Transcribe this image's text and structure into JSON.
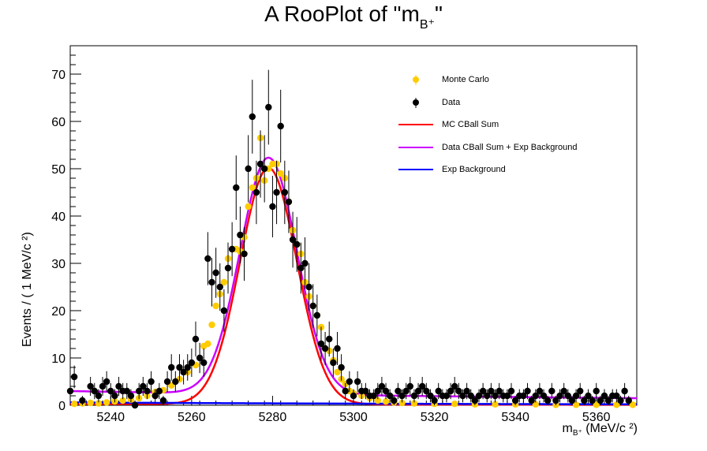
{
  "chart_data": {
    "type": "scatter",
    "title": "A RooPlot of \"m",
    "title_sub": "B⁺",
    "title_end": "\"",
    "ylabel": "Events / ( 1 MeV/c ²)",
    "xlabel": "m",
    "xlabel_sub": "B⁺",
    "xlabel_units": " (MeV/c ²)",
    "xlim": [
      5230,
      5370
    ],
    "ylim": [
      0,
      76
    ],
    "x_ticks": [
      5240,
      5260,
      5280,
      5300,
      5320,
      5340,
      5360
    ],
    "y_ticks": [
      0,
      10,
      20,
      30,
      40,
      50,
      60,
      70
    ],
    "legend": [
      {
        "label": "Monte Carlo",
        "kind": "marker",
        "color": "#ffcc00"
      },
      {
        "label": "Data",
        "kind": "marker",
        "color": "#000000"
      },
      {
        "label": "MC CBall Sum",
        "kind": "line",
        "color": "#ff0000"
      },
      {
        "label": "Data CBall Sum + Exp Background",
        "kind": "line",
        "color": "#cc00ff"
      },
      {
        "label": "Exp Background",
        "kind": "line",
        "color": "#0000ff"
      }
    ],
    "series": [
      {
        "name": "Monte Carlo",
        "kind": "points",
        "color": "#ffcc00",
        "x": [
          5231,
          5233,
          5235,
          5237,
          5239,
          5241,
          5243,
          5245,
          5247,
          5249,
          5251,
          5253,
          5255,
          5257,
          5259,
          5261,
          5263,
          5264,
          5265,
          5266,
          5267,
          5268,
          5269,
          5270,
          5271,
          5272,
          5273,
          5274,
          5275,
          5276,
          5277,
          5278,
          5279,
          5280,
          5281,
          5282,
          5283,
          5284,
          5285,
          5286,
          5287,
          5288,
          5289,
          5290,
          5291,
          5292,
          5293,
          5294,
          5295,
          5296,
          5297,
          5298,
          5299,
          5300,
          5302,
          5304,
          5306,
          5308,
          5310,
          5312,
          5315,
          5320,
          5325,
          5330,
          5335,
          5340,
          5345,
          5350,
          5355,
          5360,
          5365,
          5369
        ],
        "y": [
          0.3,
          0.4,
          0.5,
          0.4,
          0.6,
          0.8,
          1.0,
          1.2,
          1.5,
          2.0,
          2.8,
          3.2,
          4.2,
          5.5,
          7.0,
          8.5,
          12.5,
          13,
          17,
          21,
          23.5,
          26,
          31,
          33,
          33,
          32.5,
          35.5,
          42,
          46,
          48,
          56.5,
          47.5,
          50,
          51,
          51,
          49,
          48,
          43,
          37,
          34,
          32,
          26,
          23,
          21,
          19,
          16.5,
          12,
          11.5,
          9.5,
          7,
          5.5,
          4.5,
          3,
          2.5,
          2.0,
          1.5,
          1.0,
          0.8,
          0.6,
          0.5,
          0.4,
          0.3,
          0.3,
          0.2,
          0.2,
          0.2,
          0.2,
          0.1,
          0.1,
          0.1,
          0.1,
          0.1
        ]
      },
      {
        "name": "Data",
        "kind": "points_err",
        "color": "#000000",
        "x": [
          5230,
          5231,
          5233,
          5235,
          5236,
          5237,
          5238,
          5239,
          5240,
          5241,
          5242,
          5243,
          5244,
          5245,
          5246,
          5247,
          5248,
          5249,
          5250,
          5251,
          5252,
          5253,
          5254,
          5255,
          5256,
          5257,
          5258,
          5259,
          5260,
          5261,
          5262,
          5263,
          5264,
          5265,
          5266,
          5267,
          5268,
          5269,
          5270,
          5271,
          5272,
          5273,
          5274,
          5275,
          5276,
          5277,
          5278,
          5279,
          5280,
          5281,
          5282,
          5283,
          5284,
          5285,
          5286,
          5287,
          5288,
          5289,
          5290,
          5291,
          5292,
          5293,
          5294,
          5295,
          5296,
          5297,
          5298,
          5299,
          5300,
          5301,
          5302,
          5303,
          5304,
          5305,
          5306,
          5307,
          5308,
          5309,
          5310,
          5311,
          5312,
          5313,
          5314,
          5315,
          5316,
          5317,
          5318,
          5319,
          5320,
          5321,
          5322,
          5323,
          5324,
          5325,
          5326,
          5327,
          5328,
          5329,
          5330,
          5331,
          5332,
          5333,
          5334,
          5335,
          5336,
          5337,
          5338,
          5339,
          5340,
          5341,
          5342,
          5343,
          5344,
          5345,
          5346,
          5347,
          5348,
          5349,
          5350,
          5351,
          5352,
          5353,
          5354,
          5355,
          5356,
          5357,
          5358,
          5359,
          5360,
          5361,
          5362,
          5363,
          5364,
          5365,
          5366,
          5367,
          5368
        ],
        "y": [
          3,
          6,
          1,
          4,
          3,
          2,
          4,
          5,
          3,
          2,
          4,
          3,
          3,
          2,
          0,
          3,
          4,
          3,
          5,
          2,
          3,
          1,
          5,
          8,
          5,
          8,
          7,
          8,
          9,
          14,
          10,
          9,
          31,
          26,
          28,
          25,
          20,
          29,
          33,
          46,
          36,
          32,
          50,
          61,
          45,
          51,
          50,
          63,
          42,
          45,
          59,
          45,
          43,
          35,
          34,
          29,
          30,
          25,
          21,
          19,
          13,
          12,
          14,
          9,
          12,
          8,
          3,
          5,
          2,
          5,
          3,
          3,
          2,
          2,
          3,
          4,
          3,
          2,
          1,
          3,
          2,
          3,
          4,
          2,
          3,
          4,
          3,
          2,
          1,
          3,
          2,
          2,
          3,
          4,
          3,
          2,
          3,
          2,
          1,
          2,
          3,
          2,
          3,
          2,
          3,
          2,
          2,
          3,
          1,
          2,
          2,
          3,
          1,
          2,
          3,
          2,
          1,
          3,
          1,
          2,
          3,
          2,
          1,
          2,
          3,
          1,
          2,
          1,
          3,
          1,
          2,
          1,
          2,
          2,
          1,
          3,
          1
        ],
        "err": [
          1.7,
          2.4,
          1.0,
          2.0,
          1.7,
          1.4,
          2.0,
          2.2,
          1.7,
          1.4,
          2.0,
          1.7,
          1.7,
          1.4,
          1.0,
          1.7,
          2.0,
          1.7,
          2.2,
          1.4,
          1.7,
          1.0,
          2.2,
          2.8,
          2.2,
          2.8,
          2.6,
          2.8,
          3.0,
          3.7,
          3.2,
          3.0,
          5.6,
          5.1,
          5.3,
          5.0,
          4.5,
          5.4,
          5.7,
          6.8,
          6.0,
          5.7,
          7.1,
          7.8,
          6.7,
          7.1,
          7.1,
          7.9,
          6.5,
          6.7,
          7.7,
          6.7,
          6.6,
          5.9,
          5.8,
          5.4,
          5.5,
          5.0,
          4.6,
          4.4,
          3.6,
          3.5,
          3.7,
          3.0,
          3.5,
          2.8,
          1.7,
          2.2,
          1.4,
          2.2,
          1.7,
          1.7,
          1.4,
          1.4,
          1.7,
          2.0,
          1.7,
          1.4,
          1.0,
          1.7,
          1.4,
          1.7,
          2.0,
          1.4,
          1.7,
          2.0,
          1.7,
          1.4,
          1.0,
          1.7,
          1.4,
          1.4,
          1.7,
          2.0,
          1.7,
          1.4,
          1.7,
          1.4,
          1.0,
          1.4,
          1.7,
          1.4,
          1.7,
          1.4,
          1.7,
          1.4,
          1.4,
          1.7,
          1.0,
          1.4,
          1.4,
          1.7,
          1.0,
          1.4,
          1.7,
          1.4,
          1.0,
          1.7,
          1.0,
          1.4,
          1.7,
          1.4,
          1.0,
          1.4,
          1.7,
          1.0,
          1.4,
          1.0,
          1.7,
          1.0,
          1.4,
          1.0,
          1.4,
          1.4,
          1.0,
          1.7,
          1.0
        ]
      },
      {
        "name": "Data CBall Sum + Exp Background",
        "kind": "curve",
        "color": "#cc00ff",
        "peak": 50,
        "mean": 5279,
        "sigma": 7,
        "bg_start": 3,
        "bg_end": 1.5
      },
      {
        "name": "MC CBall Sum",
        "kind": "curve",
        "color": "#ff0000",
        "peak": 50,
        "mean": 5279,
        "sigma": 7,
        "bg_start": 0.3,
        "bg_end": 0.1
      },
      {
        "name": "Exp Background",
        "kind": "curve",
        "color": "#0000ff",
        "peak": 0,
        "mean": 5279,
        "sigma": 7,
        "bg_start": 0.6,
        "bg_end": 0.2
      }
    ]
  }
}
